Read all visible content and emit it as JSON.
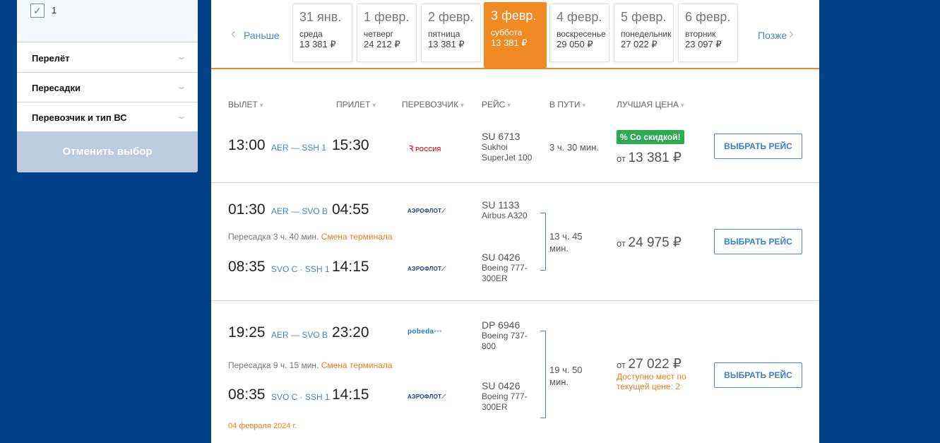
{
  "sidebar": {
    "checkbox_label": "1",
    "sections": [
      "Перелёт",
      "Пересадки",
      "Перевозчик и тип ВС"
    ],
    "reset_label": "Отменить выбор"
  },
  "datebar": {
    "prev": "Раньше",
    "next": "Позже",
    "days": [
      {
        "date": "31 янв.",
        "weekday": "среда",
        "price": "13 381 ₽"
      },
      {
        "date": "1 февр.",
        "weekday": "четверг",
        "price": "24 212 ₽"
      },
      {
        "date": "2 февр.",
        "weekday": "пятница",
        "price": "13 381 ₽"
      },
      {
        "date": "3 февр.",
        "weekday": "суббота",
        "price": "13 381 ₽",
        "selected": true
      },
      {
        "date": "4 февр.",
        "weekday": "воскресенье",
        "price": "29 050 ₽"
      },
      {
        "date": "5 февр.",
        "weekday": "понедельник",
        "price": "27 022 ₽"
      },
      {
        "date": "6 февр.",
        "weekday": "вторник",
        "price": "23 097 ₽"
      }
    ]
  },
  "columns": [
    "ВЫЛЕТ",
    "ПРИЛЕТ",
    "ПЕРЕВОЗЧИК",
    "РЕЙС",
    "В ПУТИ",
    "ЛУЧШАЯ ЦЕНА"
  ],
  "colors": {
    "accent": "#f08a24",
    "link": "#4a86c8",
    "background": "#00418a",
    "discount": "#2eaa55"
  },
  "flights": [
    {
      "segments": [
        {
          "dep": "13:00",
          "route": "AER — SSH 1",
          "arr": "15:30",
          "carrier": "РОССИЯ",
          "flight": "SU 6713",
          "aircraft": [
            "Sukhoi",
            "SuperJet 100"
          ]
        }
      ],
      "duration": "3 ч. 30 мин.",
      "badge": "% Со скидкой!",
      "price_prefix": "от",
      "price": "13 381 ₽",
      "button": "ВЫБРАТЬ РЕЙС"
    },
    {
      "segments": [
        {
          "dep": "01:30",
          "route": "AER — SVO B",
          "arr": "04:55",
          "carrier": "АЭРОФЛОТ",
          "flight": "SU 1133",
          "aircraft": [
            "Airbus A320"
          ]
        },
        {
          "dep": "08:35",
          "route": "SVO C · SSH 1",
          "arr": "14:15",
          "carrier": "АЭРОФЛОТ",
          "flight": "SU 0426",
          "aircraft": [
            "Boeing 777-",
            "300ER"
          ]
        }
      ],
      "transfer": "Пересадка 3 ч. 40 мин.",
      "transfer_note": "Смена терминала",
      "duration": [
        "13 ч. 45",
        "мин."
      ],
      "price_prefix": "от",
      "price": "24 975 ₽",
      "button": "ВЫБРАТЬ РЕЙС"
    },
    {
      "segments": [
        {
          "dep": "19:25",
          "route": "AER — SVO B",
          "arr": "23:20",
          "carrier": "pobeda",
          "flight": "DP 6946",
          "aircraft": [
            "Boeing 737-",
            "800"
          ]
        },
        {
          "dep": "08:35",
          "route": "SVO C · SSH 1",
          "arr": "14:15",
          "carrier": "АЭРОФЛОТ",
          "flight": "SU 0426",
          "aircraft": [
            "Boeing 777-",
            "300ER"
          ]
        }
      ],
      "transfer": "Пересадка 9 ч. 15 мин.",
      "transfer_note": "Смена терминала",
      "duration": [
        "19 ч. 50",
        "мин."
      ],
      "price_prefix": "от",
      "price": "27 022 ₽",
      "availability": "Доступно мест по текущей цене: 2",
      "arrival_date": "04 февраля 2024 г.",
      "button": "ВЫБРАТЬ РЕЙС"
    }
  ]
}
